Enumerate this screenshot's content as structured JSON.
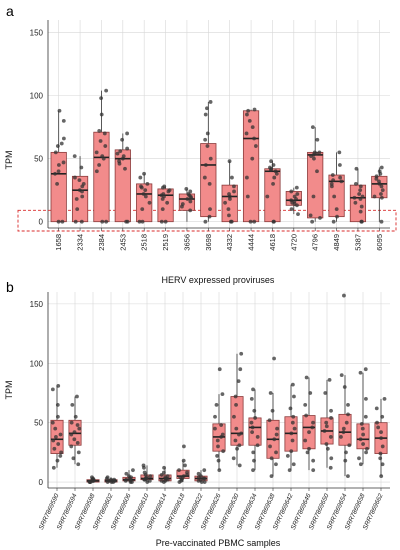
{
  "panels": {
    "a_label": "a",
    "b_label": "b"
  },
  "chart_data": [
    {
      "type": "box",
      "panel": "a",
      "xlabel": "HERV expressed proviruses",
      "ylabel": "TPM",
      "ylim": [
        -5,
        160
      ],
      "yticks": [
        0,
        50,
        100,
        150
      ],
      "grid": true,
      "highlight_band": "dashed red box around values near 0-10",
      "categories": [
        "1658",
        "2334",
        "2384",
        "2453",
        "2518",
        "2519",
        "3656",
        "3698",
        "4332",
        "4444",
        "4618",
        "4720",
        "4796",
        "4849",
        "5387",
        "6095"
      ],
      "boxes": [
        {
          "min": 0,
          "q1": 0,
          "median": 38,
          "q3": 55,
          "max": 88
        },
        {
          "min": 0,
          "q1": 0,
          "median": 25,
          "q3": 36,
          "max": 52
        },
        {
          "min": 0,
          "q1": 0,
          "median": 51,
          "q3": 71,
          "max": 104
        },
        {
          "min": 0,
          "q1": 0,
          "median": 50,
          "q3": 57,
          "max": 70
        },
        {
          "min": 0,
          "q1": 0,
          "median": 22,
          "q3": 30,
          "max": 38
        },
        {
          "min": 0,
          "q1": 0,
          "median": 21,
          "q3": 26,
          "max": 28
        },
        {
          "min": 0,
          "q1": 9,
          "median": 18,
          "q3": 22,
          "max": 26
        },
        {
          "min": 0,
          "q1": 4,
          "median": 45,
          "q3": 62,
          "max": 95
        },
        {
          "min": 0,
          "q1": 0,
          "median": 20,
          "q3": 29,
          "max": 48
        },
        {
          "min": 0,
          "q1": 0,
          "median": 66,
          "q3": 88,
          "max": 89
        },
        {
          "min": 0,
          "q1": 0,
          "median": 40,
          "q3": 42,
          "max": 48
        },
        {
          "min": 6,
          "q1": 13,
          "median": 17,
          "q3": 24,
          "max": 27
        },
        {
          "min": 0,
          "q1": 3,
          "median": 53,
          "q3": 55,
          "max": 75
        },
        {
          "min": 0,
          "q1": 4,
          "median": 32,
          "q3": 37,
          "max": 55
        },
        {
          "min": 0,
          "q1": 0,
          "median": 19,
          "q3": 29,
          "max": 42
        },
        {
          "min": 0,
          "q1": 19,
          "median": 30,
          "q3": 36,
          "max": 43
        }
      ],
      "points": [
        [
          0,
          0,
          30,
          38,
          40,
          45,
          47,
          55,
          60,
          62,
          66,
          80,
          88
        ],
        [
          0,
          0,
          10,
          18,
          20,
          24,
          25,
          28,
          30,
          33,
          35,
          43,
          52
        ],
        [
          0,
          0,
          40,
          45,
          50,
          52,
          55,
          60,
          64,
          70,
          72,
          85,
          98,
          104
        ],
        [
          0,
          0,
          42,
          46,
          48,
          50,
          52,
          54,
          56,
          58,
          65,
          70
        ],
        [
          0,
          0,
          10,
          15,
          20,
          22,
          25,
          27,
          28,
          30,
          35,
          38
        ],
        [
          0,
          0,
          10,
          15,
          18,
          20,
          21,
          22,
          24,
          25,
          27,
          28
        ],
        [
          9,
          12,
          14,
          16,
          18,
          19,
          20,
          21,
          22,
          24,
          26
        ],
        [
          0,
          4,
          10,
          30,
          35,
          45,
          50,
          60,
          65,
          70,
          85,
          90,
          95
        ],
        [
          0,
          0,
          5,
          10,
          15,
          18,
          20,
          22,
          24,
          28,
          35,
          48
        ],
        [
          0,
          0,
          20,
          35,
          50,
          60,
          66,
          70,
          75,
          80,
          85,
          88,
          89
        ],
        [
          0,
          0,
          20,
          30,
          35,
          38,
          40,
          41,
          42,
          43,
          45,
          48
        ],
        [
          6,
          10,
          13,
          14,
          15,
          16,
          17,
          18,
          20,
          22,
          24,
          27
        ],
        [
          0,
          3,
          5,
          20,
          40,
          50,
          52,
          53,
          54,
          55,
          55,
          65,
          75
        ],
        [
          0,
          4,
          10,
          20,
          28,
          30,
          32,
          33,
          35,
          37,
          45,
          55
        ],
        [
          0,
          0,
          8,
          12,
          15,
          18,
          19,
          20,
          22,
          25,
          28,
          30,
          42
        ],
        [
          0,
          19,
          20,
          22,
          25,
          28,
          30,
          32,
          34,
          36,
          38,
          40,
          43
        ]
      ]
    },
    {
      "type": "box",
      "panel": "b",
      "xlabel": "Pre-vaccinated PBMC samples",
      "ylabel": "TPM",
      "ylim": [
        -5,
        160
      ],
      "yticks": [
        0,
        50,
        100,
        150
      ],
      "grid": true,
      "categories": [
        "SRR7869590",
        "SRR7869594",
        "SRR7869598",
        "SRR7869602",
        "SRR7869606",
        "SRR7869610",
        "SRR7869614",
        "SRR7869618",
        "SRR7869622",
        "SRR7869626",
        "SRR7869630",
        "SRR7869634",
        "SRR7869638",
        "SRR7869642",
        "SRR7869646",
        "SRR7869650",
        "SRR7869654",
        "SRR7869658",
        "SRR7869662"
      ],
      "boxes": [
        {
          "min": 12,
          "q1": 24,
          "median": 36,
          "q3": 52,
          "max": 81
        },
        {
          "min": 15,
          "q1": 31,
          "median": 41,
          "q3": 52,
          "max": 72
        },
        {
          "min": 0,
          "q1": 0,
          "median": 1,
          "q3": 2,
          "max": 4
        },
        {
          "min": 0,
          "q1": 0,
          "median": 1,
          "q3": 2,
          "max": 4
        },
        {
          "min": 0,
          "q1": 1,
          "median": 2,
          "q3": 4,
          "max": 10
        },
        {
          "min": 0,
          "q1": 2,
          "median": 3,
          "q3": 6,
          "max": 14
        },
        {
          "min": 0,
          "q1": 1,
          "median": 3,
          "q3": 6,
          "max": 12
        },
        {
          "min": 0,
          "q1": 3,
          "median": 5,
          "q3": 10,
          "max": 18
        },
        {
          "min": 0,
          "q1": 1,
          "median": 3,
          "q3": 5,
          "max": 10
        },
        {
          "min": 10,
          "q1": 26,
          "median": 38,
          "q3": 49,
          "max": 74
        },
        {
          "min": 14,
          "q1": 31,
          "median": 41,
          "q3": 72,
          "max": 108
        },
        {
          "min": 10,
          "q1": 31,
          "median": 46,
          "q3": 54,
          "max": 78
        },
        {
          "min": 5,
          "q1": 20,
          "median": 36,
          "q3": 52,
          "max": 75
        },
        {
          "min": 10,
          "q1": 26,
          "median": 41,
          "q3": 55,
          "max": 82
        },
        {
          "min": 10,
          "q1": 28,
          "median": 46,
          "q3": 56,
          "max": 88
        },
        {
          "min": 12,
          "q1": 32,
          "median": 43,
          "q3": 54,
          "max": 86
        },
        {
          "min": 5,
          "q1": 31,
          "median": 42,
          "q3": 57,
          "max": 90
        },
        {
          "min": 15,
          "q1": 28,
          "median": 36,
          "q3": 49,
          "max": 92
        },
        {
          "min": 5,
          "q1": 24,
          "median": 37,
          "q3": 50,
          "max": 70
        }
      ],
      "points": [
        [
          12,
          18,
          22,
          25,
          28,
          32,
          35,
          38,
          40,
          45,
          50,
          55,
          65,
          78,
          81
        ],
        [
          15,
          20,
          25,
          30,
          33,
          36,
          40,
          42,
          45,
          48,
          50,
          55,
          65,
          72
        ],
        [
          0,
          0,
          0,
          1,
          1,
          1,
          2,
          2,
          3,
          4
        ],
        [
          0,
          0,
          0,
          1,
          1,
          1,
          2,
          2,
          3,
          4
        ],
        [
          0,
          0,
          1,
          1,
          2,
          2,
          3,
          4,
          5,
          7,
          10
        ],
        [
          0,
          1,
          2,
          2,
          3,
          3,
          4,
          5,
          6,
          8,
          12,
          14
        ],
        [
          0,
          1,
          1,
          2,
          3,
          3,
          4,
          5,
          6,
          8,
          12
        ],
        [
          0,
          1,
          2,
          3,
          4,
          5,
          6,
          8,
          10,
          14,
          18,
          30
        ],
        [
          0,
          0,
          1,
          2,
          3,
          3,
          4,
          5,
          7,
          10
        ],
        [
          10,
          18,
          22,
          26,
          30,
          35,
          38,
          40,
          45,
          48,
          55,
          65,
          74,
          95
        ],
        [
          14,
          20,
          28,
          31,
          35,
          40,
          41,
          45,
          55,
          65,
          72,
          85,
          95,
          108
        ],
        [
          10,
          18,
          25,
          31,
          38,
          42,
          46,
          50,
          54,
          60,
          70,
          78
        ],
        [
          5,
          15,
          20,
          25,
          30,
          36,
          40,
          45,
          52,
          60,
          75,
          104
        ],
        [
          10,
          15,
          22,
          26,
          35,
          41,
          45,
          50,
          55,
          62,
          72,
          82
        ],
        [
          10,
          18,
          25,
          28,
          35,
          42,
          46,
          50,
          56,
          65,
          75,
          88
        ],
        [
          12,
          20,
          28,
          32,
          38,
          43,
          47,
          50,
          54,
          60,
          75,
          86
        ],
        [
          5,
          18,
          25,
          31,
          38,
          42,
          45,
          50,
          57,
          65,
          80,
          90,
          157
        ],
        [
          15,
          20,
          25,
          28,
          32,
          36,
          40,
          45,
          49,
          55,
          70,
          92,
          95
        ],
        [
          5,
          15,
          20,
          24,
          30,
          37,
          42,
          46,
          50,
          55,
          62,
          70
        ]
      ]
    }
  ]
}
